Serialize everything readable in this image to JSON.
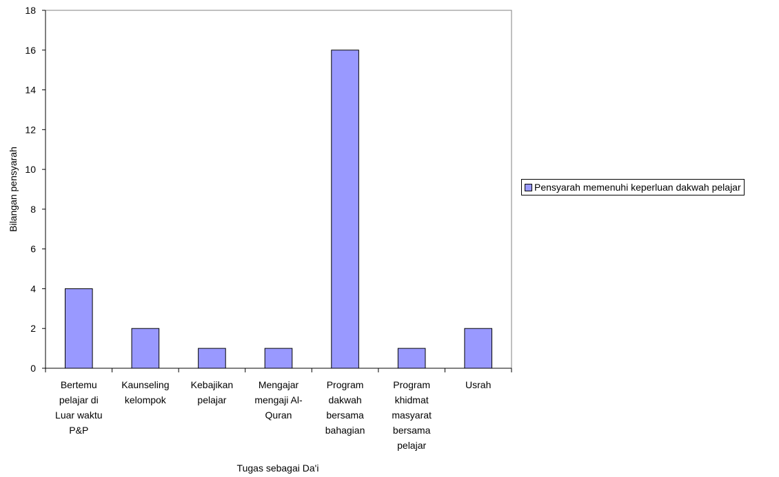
{
  "chart_data": {
    "type": "bar",
    "title": "",
    "xlabel": "Tugas sebagai Da'i",
    "ylabel": "Bilangan pensyarah",
    "ylim": [
      0,
      18
    ],
    "yticks": [
      0,
      2,
      4,
      6,
      8,
      10,
      12,
      14,
      16,
      18
    ],
    "categories": [
      [
        "Bertemu",
        "pelajar di",
        "Luar waktu",
        "P&P"
      ],
      [
        "Kaunseling",
        "kelompok"
      ],
      [
        "Kebajikan",
        "pelajar"
      ],
      [
        "Mengajar",
        "mengaji Al-",
        "Quran"
      ],
      [
        "Program",
        "dakwah",
        "bersama",
        "bahagian"
      ],
      [
        "Program",
        "khidmat",
        "masyarat",
        "bersama",
        "pelajar"
      ],
      [
        "Usrah"
      ]
    ],
    "series": [
      {
        "name": "Pensyarah memenuhi keperluan dakwah pelajar",
        "values": [
          4,
          2,
          1,
          1,
          16,
          1,
          2
        ]
      }
    ],
    "grid": false,
    "legend_position": "right",
    "bar_color": "#9999ff"
  }
}
